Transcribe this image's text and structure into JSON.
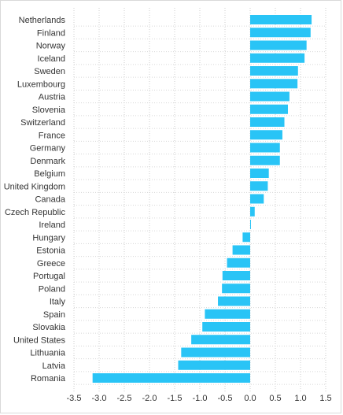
{
  "chart_data": {
    "type": "bar",
    "orientation": "horizontal",
    "categories": [
      "Netherlands",
      "Finland",
      "Norway",
      "Iceland",
      "Sweden",
      "Luxembourg",
      "Austria",
      "Slovenia",
      "Switzerland",
      "France",
      "Germany",
      "Denmark",
      "Belgium",
      "United Kingdom",
      "Canada",
      "Czech Republic",
      "Ireland",
      "Hungary",
      "Estonia",
      "Greece",
      "Portugal",
      "Poland",
      "Italy",
      "Spain",
      "Slovakia",
      "United States",
      "Lithuania",
      "Latvia",
      "Romania"
    ],
    "values": [
      1.22,
      1.2,
      1.12,
      1.08,
      0.95,
      0.94,
      0.78,
      0.75,
      0.68,
      0.64,
      0.59,
      0.59,
      0.37,
      0.35,
      0.27,
      0.09,
      0.01,
      -0.15,
      -0.35,
      -0.46,
      -0.55,
      -0.56,
      -0.64,
      -0.9,
      -0.95,
      -1.17,
      -1.37,
      -1.43,
      -3.13
    ],
    "xlim": [
      -3.5,
      1.5
    ],
    "xticks": [
      "-3.5",
      "-3.0",
      "-2.5",
      "-2.0",
      "-1.5",
      "-1.0",
      "-0.5",
      "0.0",
      "0.5",
      "1.0",
      "1.5"
    ],
    "xtick_values": [
      -3.5,
      -3.0,
      -2.5,
      -2.0,
      -1.5,
      -1.0,
      -0.5,
      0.0,
      0.5,
      1.0,
      1.5
    ],
    "title": "",
    "xlabel": "",
    "ylabel": "",
    "grid": "vertical dotted",
    "bar_color": "#29c4f6"
  }
}
